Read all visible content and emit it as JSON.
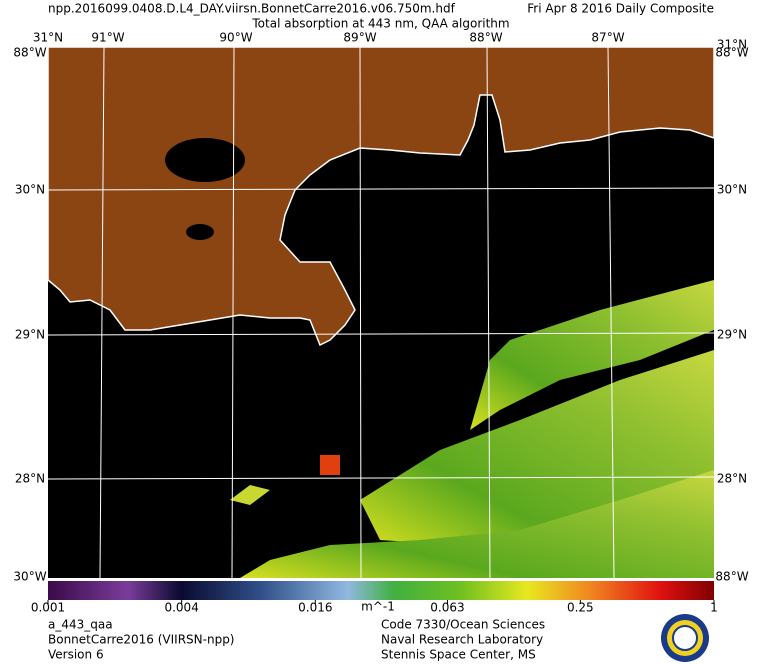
{
  "header": {
    "file": "npp.2016099.0408.D.L4_DAY.viirsn.BonnetCarre2016.v06.750m.hdf",
    "date": "Fri Apr  8 2016 Daily Composite",
    "subtitle": "Total absorption at 443 nm, QAA algorithm"
  },
  "map": {
    "top_labels": [
      "31°N",
      "91°W",
      "90°W",
      "89°W",
      "88°W",
      "87°W",
      "31°N"
    ],
    "corner_labels": [
      "88°W",
      "88°W",
      "30°W",
      "88°W"
    ],
    "lat_labels": [
      "30°N",
      "29°N",
      "28°N"
    ]
  },
  "colorbar": {
    "label": "m^-1",
    "range": [
      0.001,
      1
    ],
    "ticks": [
      0.001,
      0.004,
      0.016,
      0.063,
      0.25,
      1
    ]
  },
  "footer": {
    "left": [
      "a_443_qaa",
      "BonnetCarre2016 (VIIRSN-npp)",
      "Version 6"
    ],
    "right": [
      "Code 7330/Ocean Sciences",
      "Naval Research Laboratory",
      "Stennis Space Center, MS"
    ]
  }
}
